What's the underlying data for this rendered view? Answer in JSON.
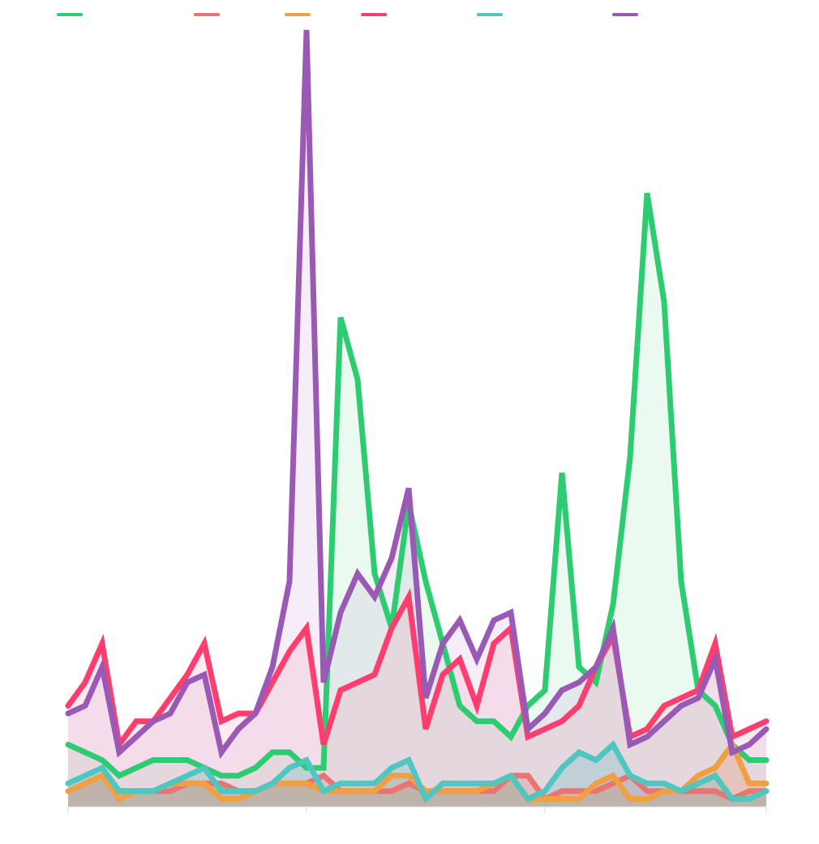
{
  "chart_data": {
    "type": "area",
    "title": "",
    "xlabel": "",
    "ylabel": "",
    "ylim": [
      0,
      100
    ],
    "grid": false,
    "legend_position": "top-left",
    "x": [
      0,
      1,
      2,
      3,
      4,
      5,
      6,
      7,
      8,
      9,
      10,
      11,
      12,
      13,
      14,
      15,
      16,
      17,
      18,
      19,
      20,
      21,
      22,
      23,
      24,
      25,
      26,
      27,
      28,
      29,
      30,
      31,
      32,
      33,
      34,
      35,
      36,
      37,
      38,
      39,
      40,
      41
    ],
    "series": [
      {
        "color": "#2ecc71",
        "filled": true,
        "values": [
          8,
          7,
          6,
          4,
          5,
          6,
          6,
          6,
          5,
          4,
          4,
          5,
          7,
          7,
          5,
          5,
          63,
          55,
          30,
          23,
          39,
          29,
          21,
          13,
          11,
          11,
          9,
          13,
          15,
          43,
          18,
          16,
          26,
          45,
          79,
          65,
          29,
          15,
          13,
          8,
          6,
          6
        ]
      },
      {
        "color": "#e87474",
        "filled": false,
        "values": [
          2,
          3,
          4,
          2,
          2,
          2,
          2,
          3,
          3,
          3,
          2,
          2,
          3,
          3,
          3,
          4,
          2,
          2,
          2,
          2,
          3,
          2,
          2,
          2,
          2,
          2,
          4,
          4,
          1,
          2,
          2,
          2,
          3,
          4,
          2,
          2,
          2,
          2,
          2,
          1,
          2,
          2
        ]
      },
      {
        "color": "#f0a040",
        "filled": false,
        "values": [
          2,
          3,
          4,
          1,
          2,
          2,
          3,
          3,
          3,
          1,
          1,
          2,
          3,
          3,
          3,
          2,
          2,
          2,
          2,
          4,
          4,
          2,
          2,
          2,
          2,
          3,
          4,
          1,
          1,
          1,
          1,
          3,
          4,
          1,
          1,
          2,
          2,
          4,
          5,
          8,
          3,
          3
        ]
      },
      {
        "color": "#ff3d6f",
        "filled": true,
        "values": [
          13,
          16,
          21,
          8,
          11,
          11,
          14,
          17,
          21,
          11,
          12,
          12,
          16,
          20,
          23,
          8,
          15,
          16,
          17,
          23,
          27,
          10,
          17,
          19,
          13,
          21,
          23,
          9,
          10,
          11,
          13,
          18,
          22,
          9,
          10,
          13,
          14,
          15,
          21,
          9,
          10,
          11
        ]
      },
      {
        "color": "#4fc6c0",
        "filled": false,
        "values": [
          3,
          4,
          5,
          2,
          2,
          2,
          3,
          4,
          5,
          2,
          2,
          2,
          3,
          5,
          6,
          2,
          3,
          3,
          3,
          5,
          6,
          1,
          3,
          3,
          3,
          3,
          4,
          1,
          2,
          5,
          7,
          6,
          8,
          4,
          3,
          3,
          2,
          3,
          4,
          1,
          1,
          2
        ]
      },
      {
        "color": "#9b59b6",
        "filled": true,
        "values": [
          12,
          13,
          18,
          7,
          9,
          11,
          12,
          16,
          17,
          7,
          10,
          12,
          18,
          29,
          100,
          16,
          25,
          30,
          27,
          32,
          41,
          14,
          21,
          24,
          19,
          24,
          25,
          10,
          12,
          15,
          16,
          18,
          23,
          8,
          9,
          11,
          13,
          14,
          19,
          7,
          8,
          10
        ]
      }
    ]
  }
}
